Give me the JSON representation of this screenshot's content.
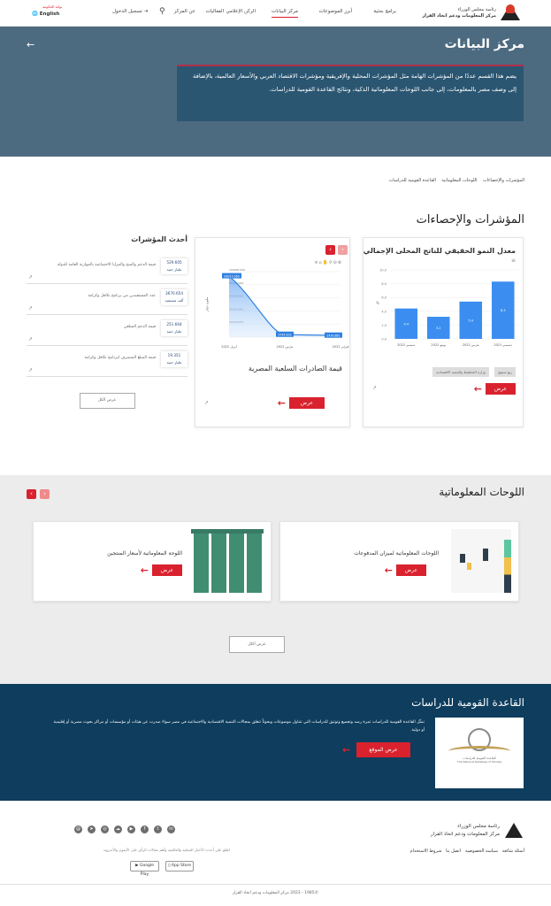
{
  "header": {
    "logo_line1": "رئاسة مجلس الوزراء",
    "logo_line2": "مركز المعلومات ودعم اتخاذ القرار",
    "nav": [
      "برامج بحثية",
      "أبرز الموضوعات",
      "مركز البيانات",
      "الركن الإعلامي",
      "الفعاليات",
      "عن المركز"
    ],
    "login": "تسجيل الدخول",
    "lang_top": "بوابة الحكومة",
    "lang": "English"
  },
  "hero": {
    "title": "مركز البيانات",
    "description": "يضم هذا القسم عددًا من المؤشرات الهامة مثل المؤشرات المحلية والإفريقية ومؤشرات الاقتصاد العربي والأسعار العالمية، بالإضافة إلى وصف مصر بالمعلومات، إلى جانب اللوحات المعلوماتية الذكية، ونتائج القاعدة القومية للدراسات."
  },
  "breadcrumb": [
    "المؤشرات والإحصاءات",
    "اللوحات المعلوماتية",
    "القاعدة القومية للدراسات"
  ],
  "indicators": {
    "title": "المؤشرات والإحصاءات",
    "view": "عرض",
    "latest_title": "أحدث المؤشرات",
    "view_all": "عرض الكل",
    "latest": [
      {
        "value": "529.605",
        "unit": "مليار جنيه",
        "label": "قيمة الدعم والمنح والمزايا الاجتماعية بالموازنة العامة للدولة"
      },
      {
        "value": "3670.654",
        "unit": "ألف مستفيد",
        "label": "عدد المستفيدين من برنامج تكافل وكرامة"
      },
      {
        "value": "251.664",
        "unit": "مليار جنيه",
        "label": "قيمة الدعم السلعي"
      },
      {
        "value": "19.351",
        "unit": "مليار جنيه",
        "label": "قيمة المبلغ المنصرف لبرنامج تكافل وكرامة"
      }
    ],
    "tags": [
      "وزارة التخطيط والتنمية الاقتصادية",
      "ربع سنوي"
    ]
  },
  "chart_data": [
    {
      "type": "bar",
      "title": "معدل النمو الحقيقي للناتج المحلى الإجمالي",
      "ylabel": "%",
      "categories": [
        "ديسمبر 2021",
        "مارس 2022",
        "يونيو 2022",
        "سبتمبر 2022"
      ],
      "values": [
        8.3,
        5.4,
        3.2,
        4.4
      ],
      "ylim": [
        0,
        10
      ],
      "yticks": [
        "0.0",
        "2.0",
        "4.0",
        "6.0",
        "8.0",
        "10.0"
      ],
      "color": "#3b8ef0",
      "grid": true
    },
    {
      "type": "area",
      "title": "قيمة الصادرات السلعية المصرية",
      "ylabel": "مليون دولار",
      "categories": [
        "فبراير 2022",
        "مارس 2022",
        "أبريل 2022"
      ],
      "values": [
        2430.881,
        3744.202,
        93013.16
      ],
      "value_labels": [
        "2430.881",
        "3744.202",
        "93013.160"
      ],
      "ylim": [
        0,
        100000
      ],
      "yticks": [
        "0",
        "20000.000",
        "40000.000",
        "60000.000",
        "80000.000",
        "100000.000"
      ],
      "color": "#2f80e0",
      "grid": true
    }
  ],
  "dashboards": {
    "title": "اللوحات المعلوماتية",
    "view": "عرض",
    "view_all": "عرض الكل",
    "items": [
      "اللوحات المعلوماتية لميزان المدفوعات",
      "اللوحة المعلوماتية لأسعار المنتجين"
    ]
  },
  "studies": {
    "title": "القاعدة القومية للدراسات",
    "text": "تمثّل القاعدة القومية للدراسات ثمرة رصد وتجميع وتوثيق للدراسات التي تتناول موضوعات وبحوثاً تتعلق بمجالات التنمية الاقتصادية والاجتماعية في مصر سواء صدرت عن هيئات أو مؤسسات أو مراكز بحوث مصرية أو إقليمية أو دولية.",
    "button": "عرض الموقع",
    "logo_ar": "القاعدة القومية للدراسات",
    "logo_en": "The National Database of Studies"
  },
  "footer": {
    "links": [
      "أسئلة شائعة",
      "سياسة الخصوصية",
      "اتصل بنا",
      "شروط الاستخدام"
    ],
    "app_text": "اطلع على أحدث الأخبار المحلية والعالمية وأهم مقالات الرأي على الأيفون والأندرويد",
    "app_store": "App Store",
    "google_play": "Google Play",
    "social": [
      "linkedin",
      "twitter",
      "facebook",
      "youtube",
      "soundcloud",
      "instagram",
      "telegram",
      "email"
    ],
    "copyright": "©1985 - 2023 مركز المعلومات ودعم اتخاذ القرار"
  },
  "colors": {
    "accent": "#d9222e",
    "hero": "#4d6b80",
    "dark": "#0e3d5d"
  }
}
